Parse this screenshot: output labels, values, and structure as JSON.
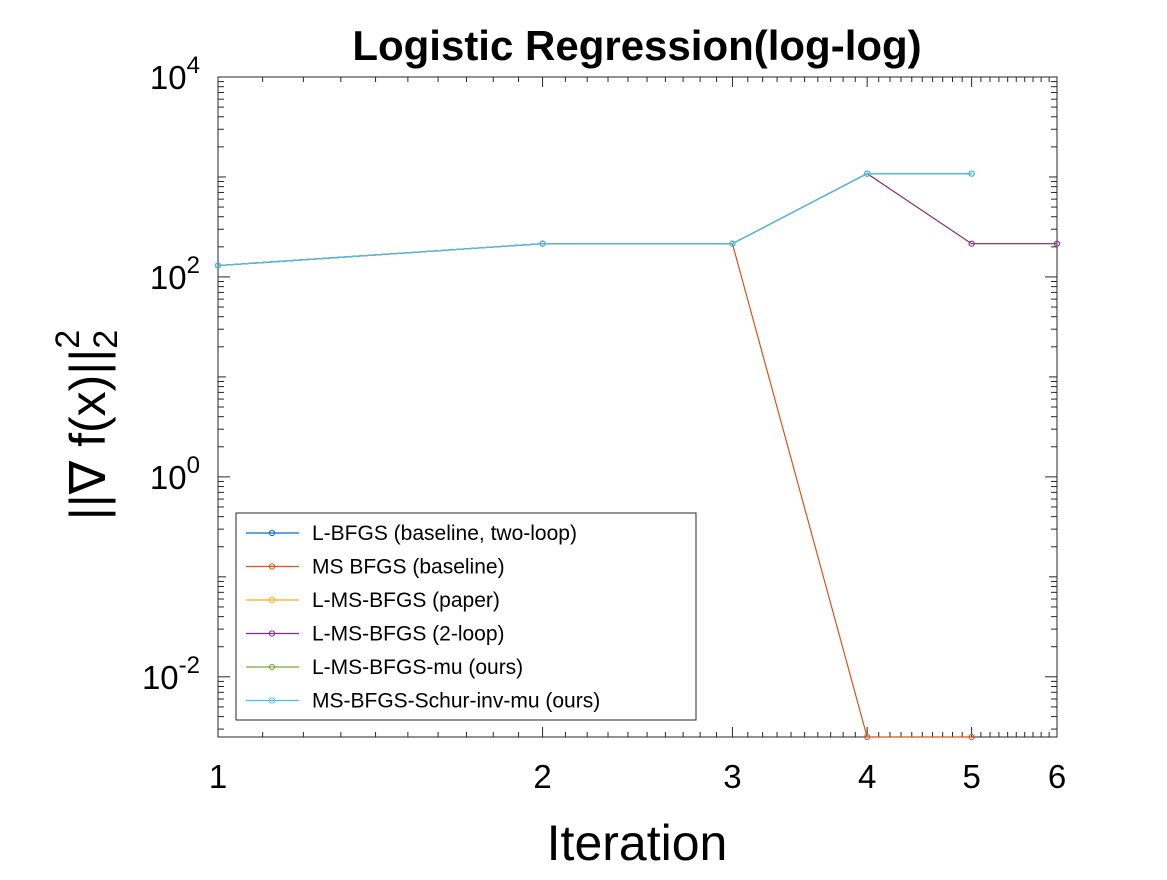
{
  "chart_data": {
    "type": "line",
    "title": "Logistic Regression(log-log)",
    "xlabel": "Iteration",
    "ylabel": "||∇ f(x)||",
    "ylabel_sup": "2",
    "ylabel_sub": "2",
    "xscale": "log",
    "yscale": "log",
    "xlim": [
      1,
      6
    ],
    "ylim": [
      0.0025,
      10000
    ],
    "xticks": [
      1,
      2,
      3,
      4,
      5,
      6
    ],
    "xtick_labels": [
      "1",
      "2",
      "3",
      "4",
      "5",
      "6"
    ],
    "ytick_labels": [
      {
        "base": "10",
        "exp": "4"
      },
      {
        "base": "10",
        "exp": "2"
      },
      {
        "base": "10",
        "exp": "0"
      },
      {
        "base": "10",
        "exp": "-2"
      }
    ],
    "yticks": [
      10000,
      100,
      1,
      0.01
    ],
    "grid": false,
    "legend_position": "bottom-left",
    "series": [
      {
        "name": "L-BFGS (baseline, two-loop)",
        "color": "#0072BD",
        "x": [
          1,
          2,
          3,
          4,
          5
        ],
        "y": [
          130,
          215,
          215,
          1080,
          1080
        ]
      },
      {
        "name": "MS BFGS (baseline)",
        "color": "#D95319",
        "x": [
          1,
          2,
          3,
          4,
          5
        ],
        "y": [
          130,
          215,
          215,
          0.0025,
          0.0025
        ]
      },
      {
        "name": "L-MS-BFGS (paper)",
        "color": "#EDB120",
        "x": [
          1,
          2,
          3,
          4,
          5,
          6
        ],
        "y": [
          130,
          215,
          215,
          1080,
          215,
          215
        ]
      },
      {
        "name": "L-MS-BFGS (2-loop)",
        "color": "#7E2F8E",
        "x": [
          1,
          2,
          3,
          4,
          5,
          6
        ],
        "y": [
          130,
          215,
          215,
          1080,
          215,
          215
        ]
      },
      {
        "name": "L-MS-BFGS-mu (ours)",
        "color": "#77AC30",
        "x": [
          1,
          2,
          3,
          4,
          5
        ],
        "y": [
          130,
          215,
          215,
          1080,
          1080
        ]
      },
      {
        "name": "MS-BFGS-Schur-inv-mu (ours)",
        "color": "#4DBEEE",
        "x": [
          1,
          2,
          3,
          4,
          5
        ],
        "y": [
          130,
          215,
          215,
          1080,
          1080
        ]
      }
    ]
  }
}
